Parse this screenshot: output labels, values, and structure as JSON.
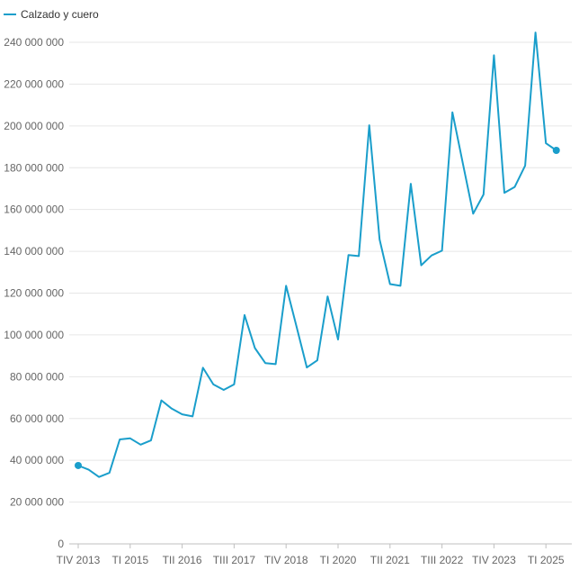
{
  "chart_data": {
    "type": "line",
    "title": "",
    "xlabel": "",
    "ylabel": "",
    "legend": {
      "placement": "top-left"
    },
    "grid": true,
    "ylim": [
      0,
      250000000
    ],
    "y_ticks": [
      0,
      20000000,
      40000000,
      60000000,
      80000000,
      100000000,
      120000000,
      140000000,
      160000000,
      180000000,
      200000000,
      220000000,
      240000000
    ],
    "y_tick_labels": [
      "0",
      "20 000 000",
      "40 000 000",
      "60 000 000",
      "80 000 000",
      "100 000 000",
      "120 000 000",
      "140 000 000",
      "160 000 000",
      "180 000 000",
      "200 000 000",
      "220 000 000",
      "240 000 000"
    ],
    "x": [
      "TIV 2013",
      "TI 2014",
      "TII 2014",
      "TIII 2014",
      "TIV 2014",
      "TI 2015",
      "TII 2015",
      "TIII 2015",
      "TIV 2015",
      "TI 2016",
      "TII 2016",
      "TIII 2016",
      "TIV 2016",
      "TI 2017",
      "TII 2017",
      "TIII 2017",
      "TIV 2017",
      "TI 2018",
      "TII 2018",
      "TIII 2018",
      "TIV 2018",
      "TI 2019",
      "TII 2019",
      "TIII 2019",
      "TIV 2019",
      "TI 2020",
      "TII 2020",
      "TIII 2020",
      "TIV 2020",
      "TI 2021",
      "TII 2021",
      "TIII 2021",
      "TIV 2021",
      "TI 2022",
      "TII 2022",
      "TIII 2022",
      "TIV 2022",
      "TI 2023",
      "TII 2023",
      "TIII 2023",
      "TIV 2023",
      "TI 2024",
      "TII 2024",
      "TIII 2024",
      "TIV 2024",
      "TI 2025",
      "TII 2025"
    ],
    "x_tick_labels": [
      "TIV 2013",
      "TI 2015",
      "TII 2016",
      "TIII 2017",
      "TIV 2018",
      "TI 2020",
      "TII 2021",
      "TIII 2022",
      "TIV 2023",
      "TI 2025"
    ],
    "series": [
      {
        "name": "Calzado y cuero",
        "color": "#1a9ecb",
        "values": [
          37500000,
          35500000,
          32000000,
          34000000,
          50000000,
          50500000,
          47500000,
          49500000,
          68700000,
          64700000,
          62000000,
          61000000,
          84300000,
          76300000,
          73700000,
          76300000,
          109500000,
          93700000,
          86500000,
          86000000,
          123500000,
          104000000,
          84400000,
          87800000,
          118400000,
          97800000,
          138200000,
          137700000,
          200300000,
          145700000,
          124300000,
          123500000,
          172300000,
          133300000,
          138000000,
          140300000,
          206500000,
          182300000,
          158000000,
          167200000,
          233800000,
          168000000,
          170800000,
          181000000,
          244700000,
          191700000,
          188300000
        ]
      }
    ]
  }
}
